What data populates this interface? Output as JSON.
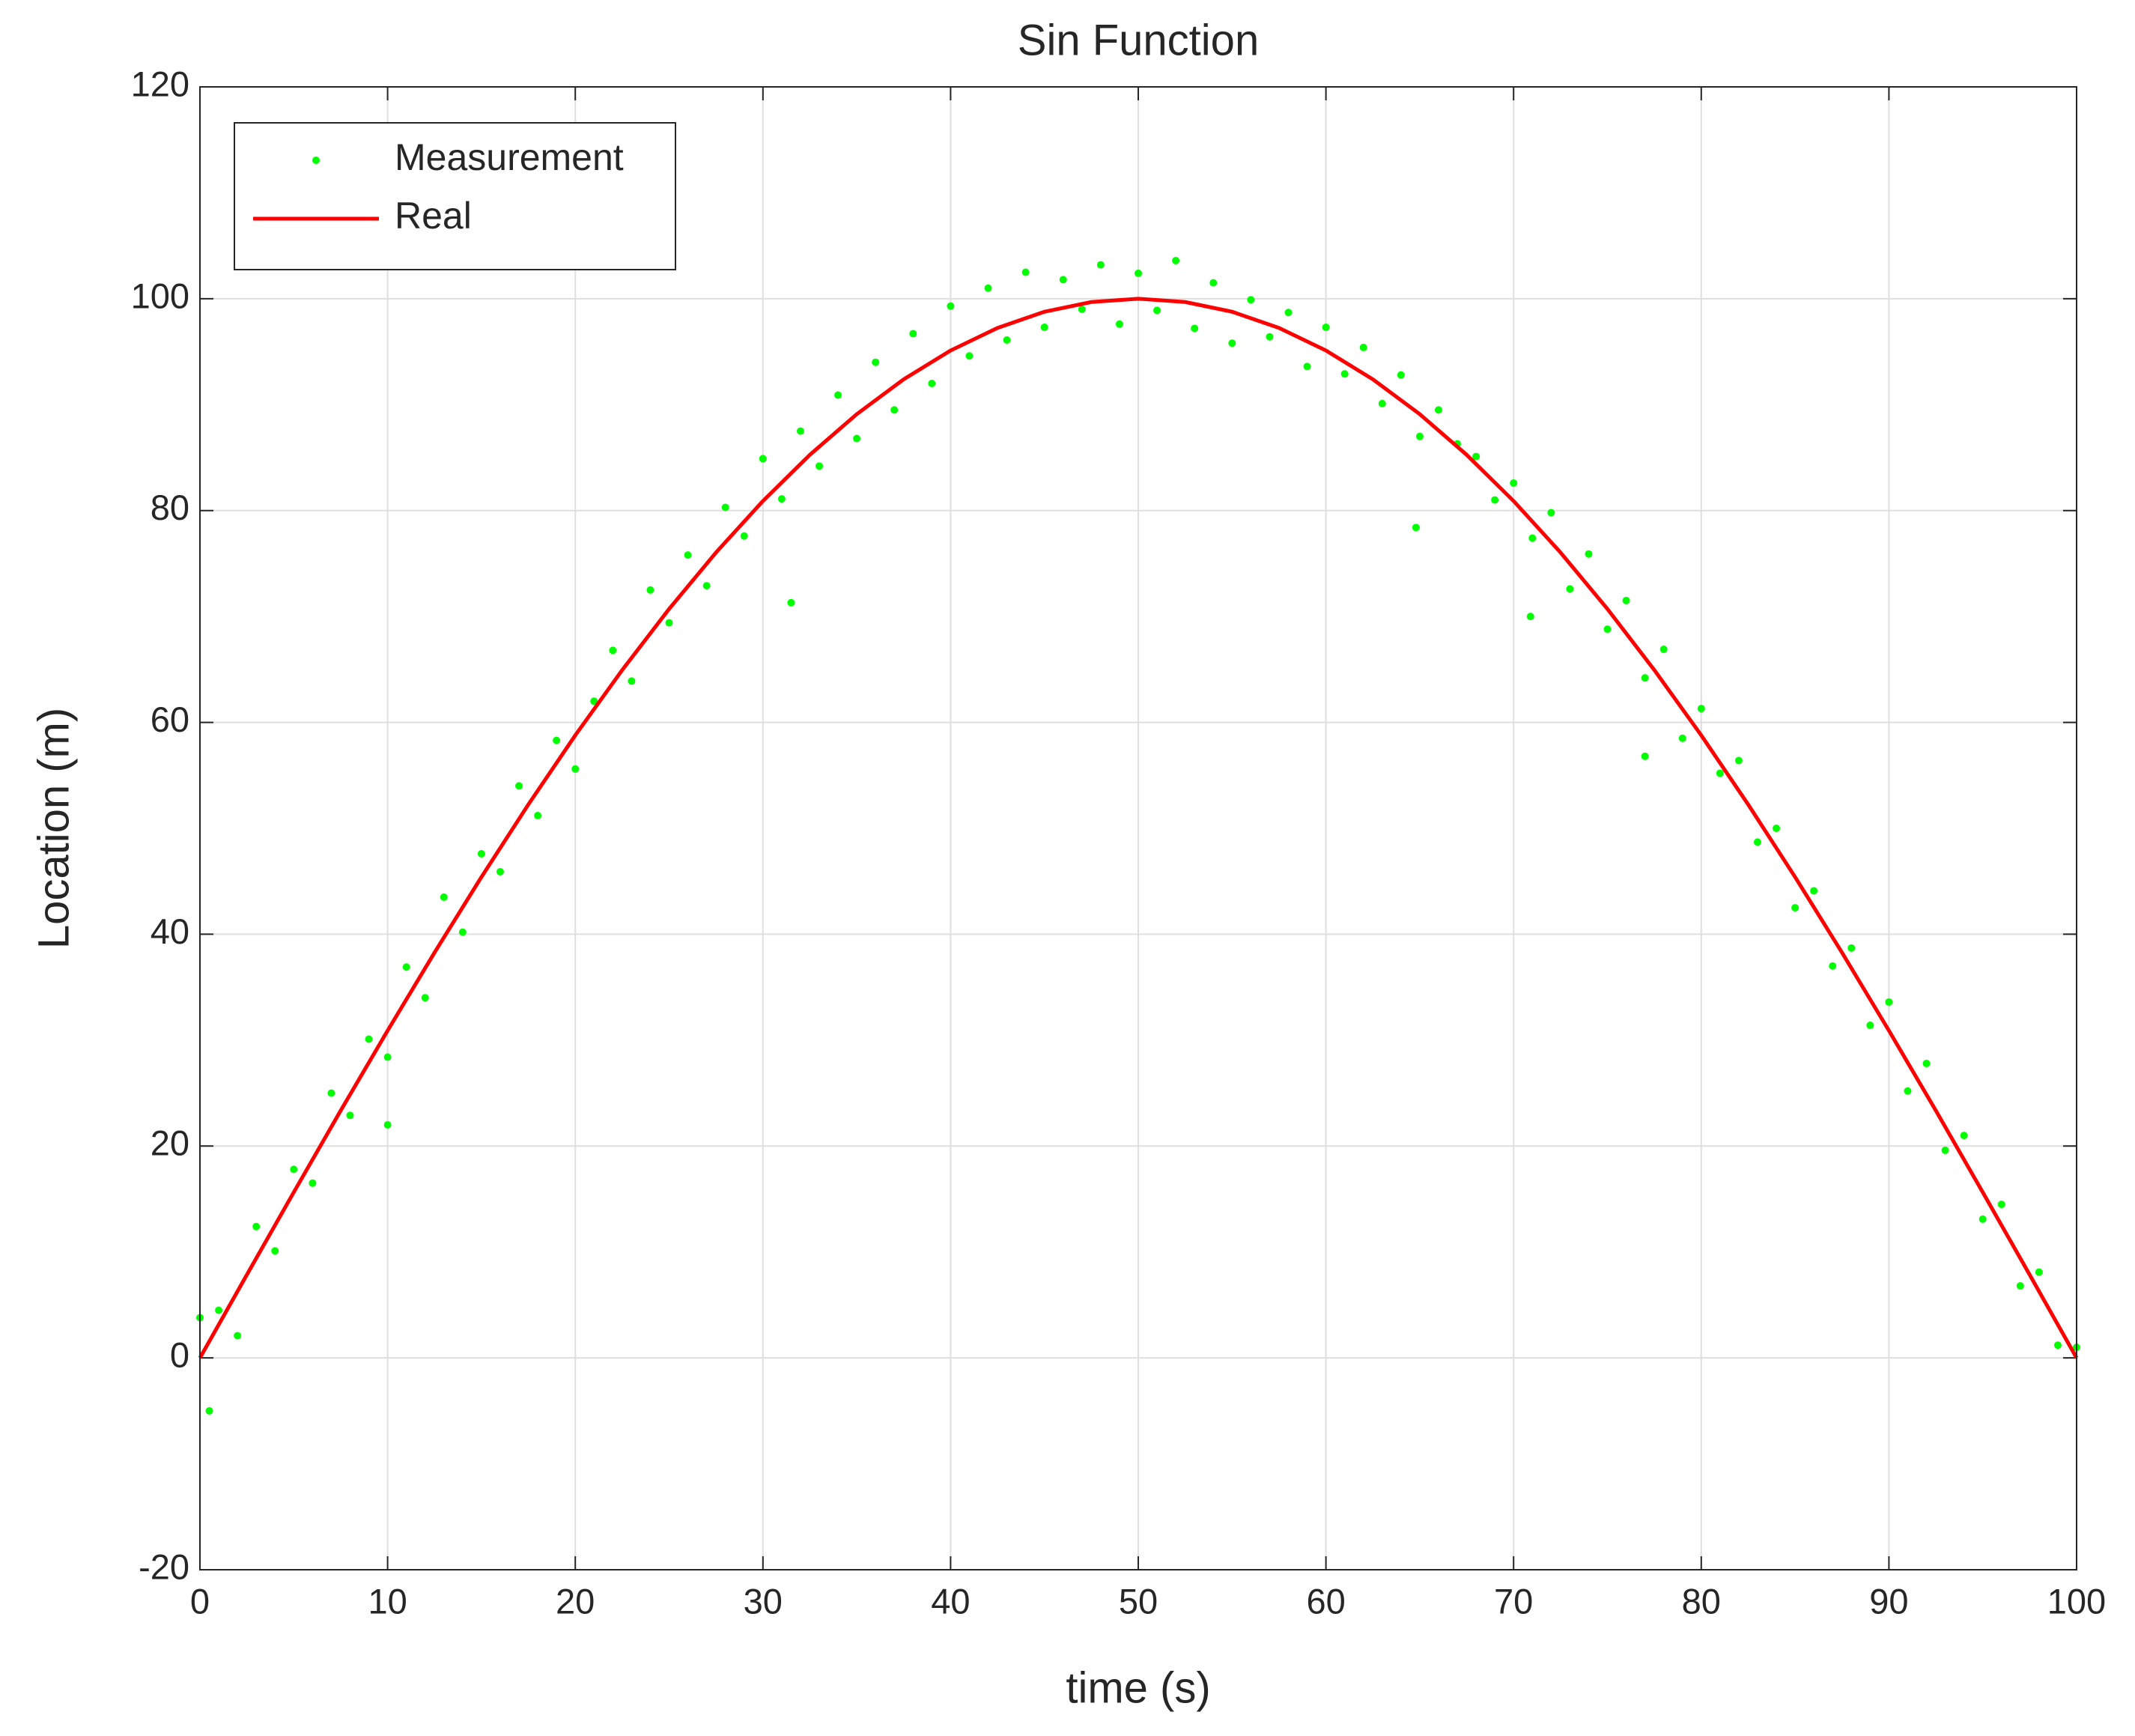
{
  "chart_data": {
    "type": "scatter",
    "title": "Sin Function",
    "xlabel": "time (s)",
    "ylabel": "Location (m)",
    "xlim": [
      0,
      100
    ],
    "ylim": [
      -20,
      120
    ],
    "xticks": [
      0,
      10,
      20,
      30,
      40,
      50,
      60,
      70,
      80,
      90,
      100
    ],
    "yticks": [
      -20,
      0,
      20,
      40,
      60,
      80,
      100,
      120
    ],
    "grid": true,
    "legend": "upper left",
    "series": [
      {
        "name": "Measurement",
        "type": "scatter",
        "color": "#00ff00",
        "x": [
          0,
          1,
          2,
          3,
          4,
          5,
          6,
          7,
          8,
          9,
          10,
          11,
          12,
          13,
          14,
          15,
          16,
          17,
          18,
          19,
          20,
          21,
          22,
          23,
          24,
          25,
          26,
          27,
          28,
          29,
          30,
          31,
          32,
          33,
          34,
          35,
          36,
          37,
          38,
          39,
          40,
          41,
          42,
          43,
          44,
          45,
          46,
          47,
          48,
          49,
          50,
          51,
          52,
          53,
          54,
          55,
          56,
          57,
          58,
          59,
          60,
          61,
          62,
          63,
          64,
          65,
          66,
          67,
          68,
          69,
          70,
          71,
          72,
          73,
          74,
          75,
          76,
          77,
          78,
          79,
          80,
          81,
          82,
          83,
          84,
          85,
          86,
          87,
          88,
          89,
          90,
          91,
          92,
          93,
          94,
          95,
          96,
          97,
          98,
          99,
          100,
          0.5,
          10,
          31.5,
          64.8,
          70.9,
          77
        ],
        "values": [
          3.8,
          4.5,
          2.1,
          12.4,
          10.1,
          17.8,
          16.5,
          25.0,
          22.9,
          30.1,
          28.4,
          36.9,
          34.0,
          43.5,
          40.2,
          47.6,
          45.9,
          54.0,
          51.2,
          58.3,
          55.6,
          62.0,
          66.8,
          63.9,
          72.5,
          69.4,
          75.8,
          72.9,
          80.3,
          77.6,
          84.9,
          81.1,
          87.5,
          84.2,
          90.9,
          86.8,
          94.0,
          89.5,
          96.7,
          92.0,
          99.3,
          94.6,
          101.0,
          96.1,
          102.5,
          97.3,
          101.8,
          99.0,
          103.2,
          97.6,
          102.4,
          98.9,
          103.6,
          97.2,
          101.5,
          95.8,
          99.9,
          96.4,
          98.7,
          93.6,
          97.3,
          92.9,
          95.4,
          90.1,
          92.8,
          87.0,
          89.5,
          86.3,
          85.1,
          81.0,
          82.6,
          77.4,
          79.8,
          72.6,
          75.9,
          68.8,
          71.5,
          64.2,
          66.9,
          58.5,
          61.3,
          55.2,
          56.4,
          48.7,
          50.0,
          42.5,
          44.1,
          37.0,
          38.7,
          31.4,
          33.6,
          25.2,
          27.8,
          19.6,
          21.0,
          13.1,
          14.5,
          6.8,
          8.1,
          1.2,
          1.0,
          -5,
          22,
          71.3,
          78.4,
          70.0,
          56.8
        ]
      },
      {
        "name": "Real",
        "type": "line",
        "color": "#ff0000",
        "x": [
          0,
          2.5,
          5,
          7.5,
          10,
          12.5,
          15,
          17.5,
          20,
          22.5,
          25,
          27.5,
          30,
          32.5,
          35,
          37.5,
          40,
          42.5,
          45,
          47.5,
          50,
          52.5,
          55,
          57.5,
          60,
          62.5,
          65,
          67.5,
          70,
          72.5,
          75,
          77.5,
          80,
          82.5,
          85,
          87.5,
          90,
          92.5,
          95,
          97.5,
          100
        ],
        "values": [
          0,
          7.85,
          15.64,
          23.35,
          30.9,
          38.27,
          45.4,
          52.25,
          58.78,
          64.94,
          70.71,
          76.04,
          80.9,
          85.26,
          89.1,
          92.39,
          95.11,
          97.24,
          98.77,
          99.69,
          100,
          99.69,
          98.77,
          97.24,
          95.11,
          92.39,
          89.1,
          85.26,
          80.9,
          76.04,
          70.71,
          64.94,
          58.78,
          52.25,
          45.4,
          38.27,
          30.9,
          23.35,
          15.64,
          7.85,
          0
        ]
      }
    ]
  }
}
